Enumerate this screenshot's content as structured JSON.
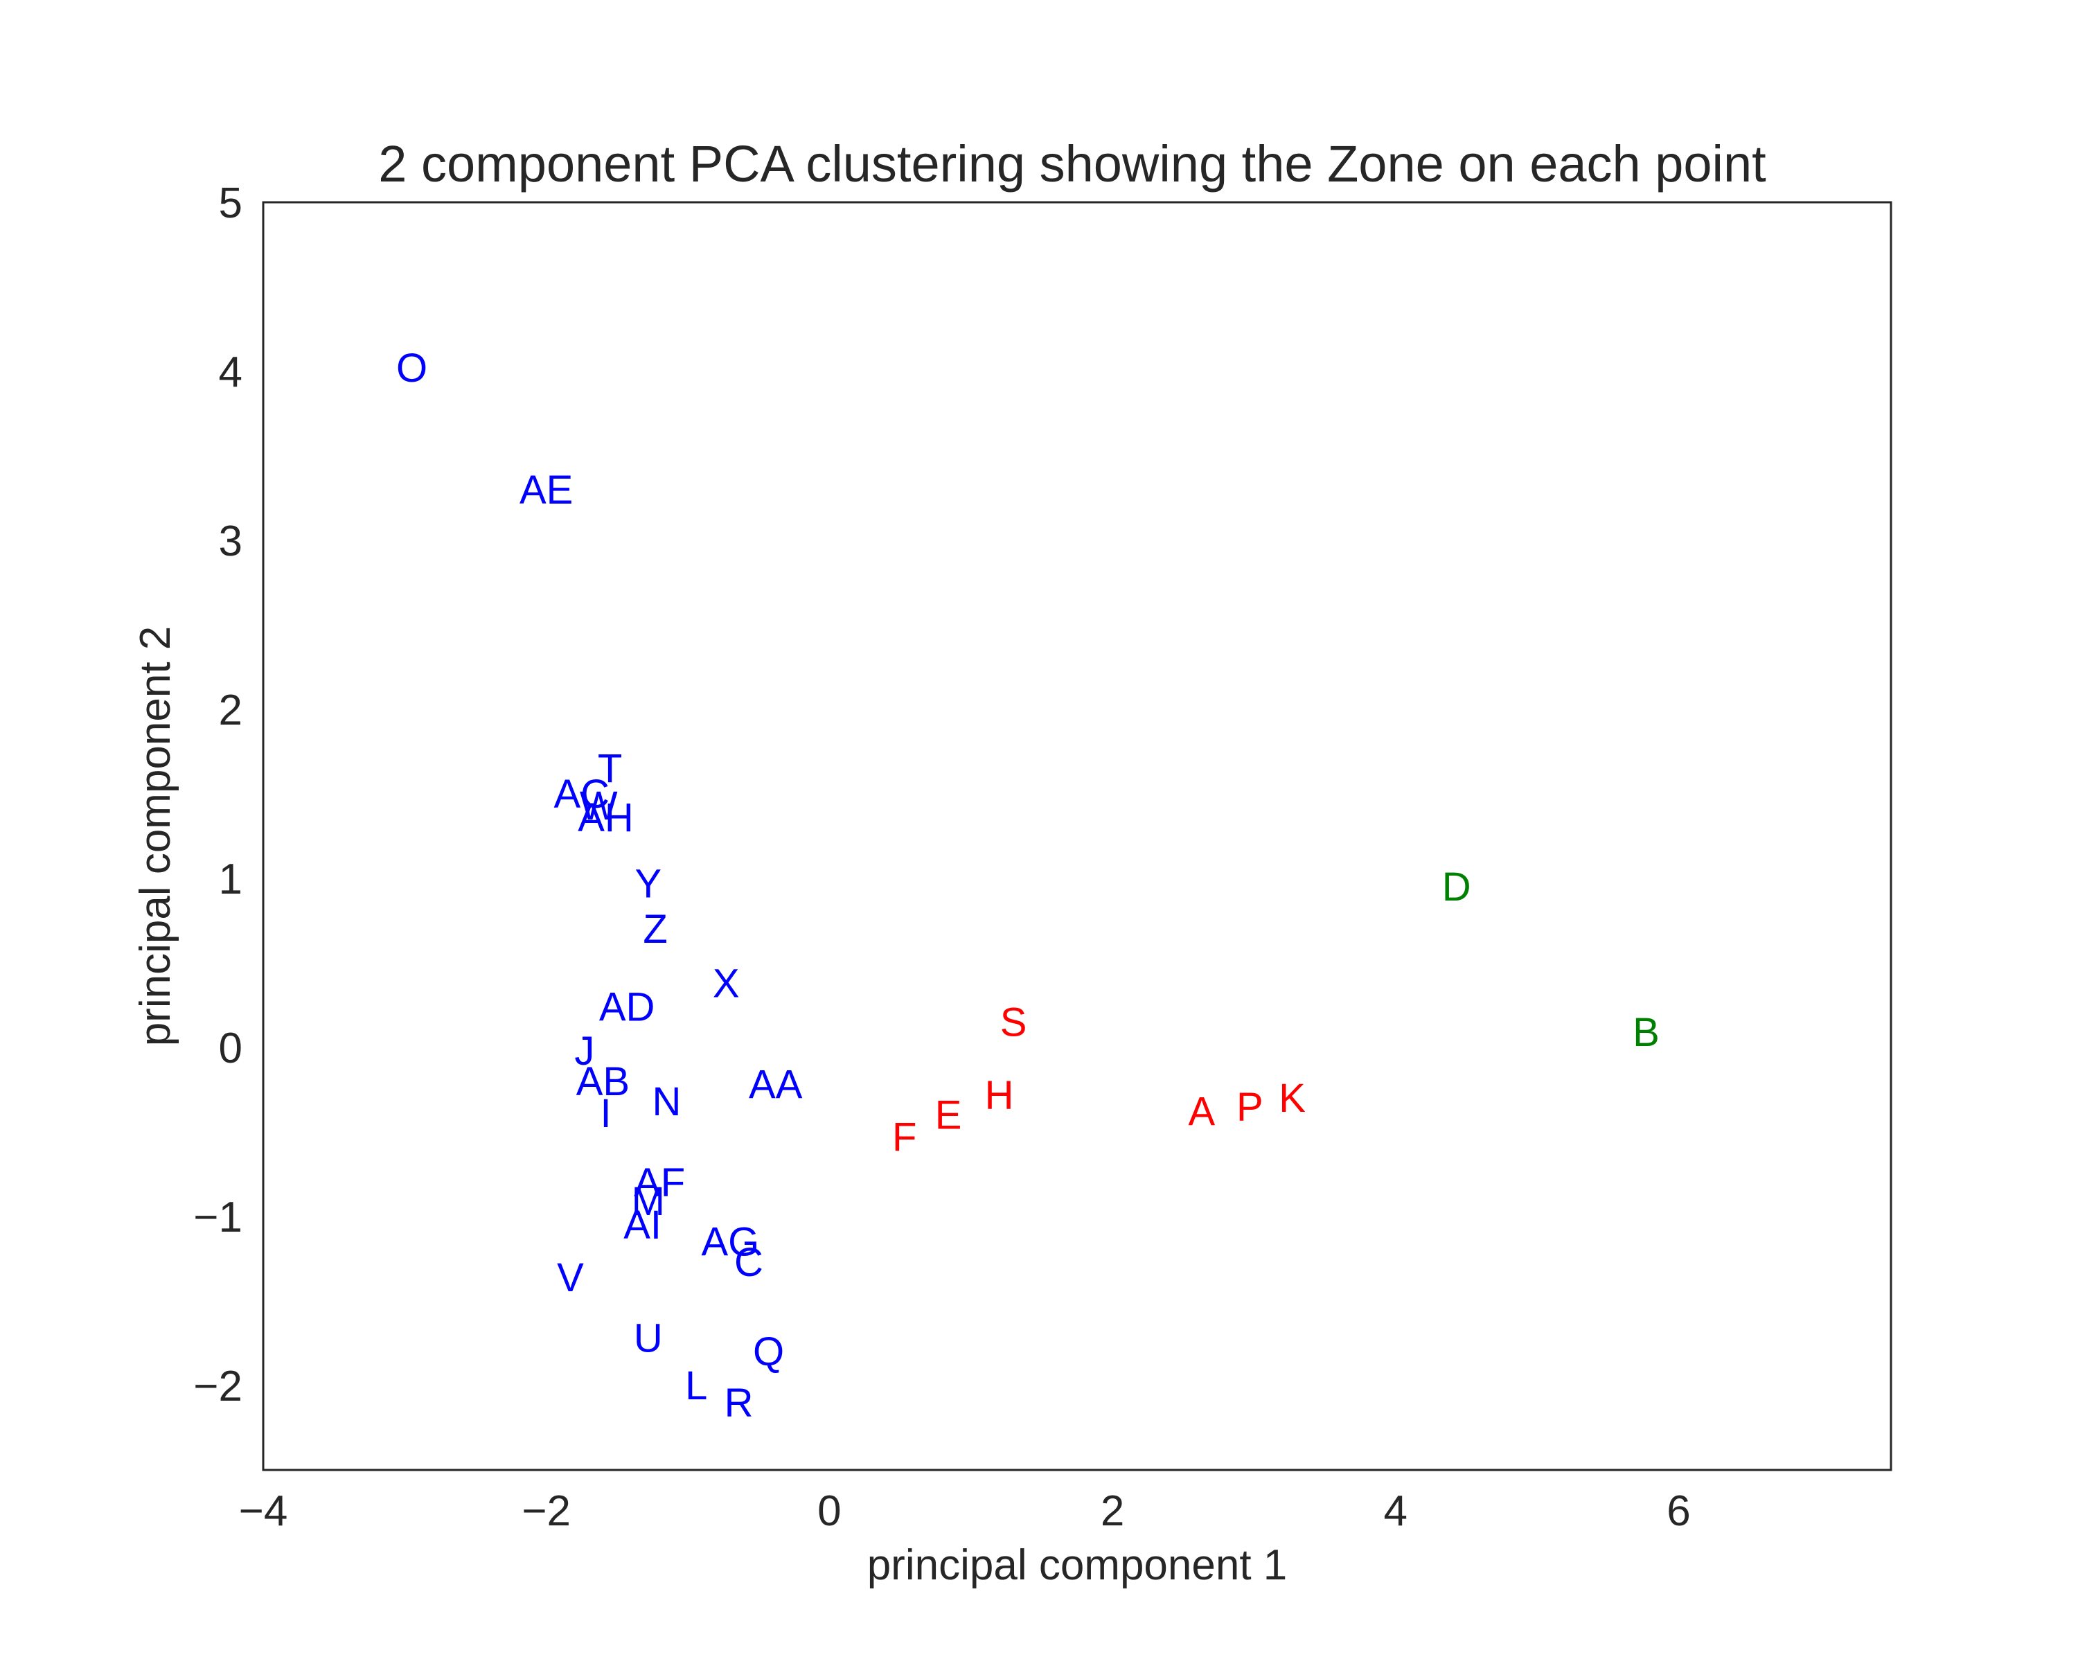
{
  "chart_data": {
    "type": "scatter",
    "title": "2 component PCA clustering showing the Zone on each point",
    "xlabel": "principal component 1",
    "ylabel": "principal component 2",
    "xlim": [
      -4,
      7.5
    ],
    "ylim": [
      -2.5,
      5
    ],
    "xticks": [
      -4,
      -2,
      0,
      2,
      4,
      6
    ],
    "yticks": [
      -2,
      -1,
      0,
      1,
      2,
      3,
      4,
      5
    ],
    "grid": false,
    "points": [
      {
        "label": "O",
        "x": -2.95,
        "y": 4.02,
        "color": "#0000ff"
      },
      {
        "label": "AE",
        "x": -2.0,
        "y": 3.3,
        "color": "#0000ff"
      },
      {
        "label": "T",
        "x": -1.55,
        "y": 1.65,
        "color": "#0000ff"
      },
      {
        "label": "AC",
        "x": -1.75,
        "y": 1.5,
        "color": "#0000ff"
      },
      {
        "label": "W",
        "x": -1.63,
        "y": 1.43,
        "color": "#0000ff"
      },
      {
        "label": "AH",
        "x": -1.58,
        "y": 1.36,
        "color": "#0000ff"
      },
      {
        "label": "Y",
        "x": -1.28,
        "y": 0.97,
        "color": "#0000ff"
      },
      {
        "label": "Z",
        "x": -1.23,
        "y": 0.7,
        "color": "#0000ff"
      },
      {
        "label": "X",
        "x": -0.73,
        "y": 0.38,
        "color": "#0000ff"
      },
      {
        "label": "AD",
        "x": -1.43,
        "y": 0.24,
        "color": "#0000ff"
      },
      {
        "label": "J",
        "x": -1.73,
        "y": -0.02,
        "color": "#0000ff"
      },
      {
        "label": "AB",
        "x": -1.6,
        "y": -0.2,
        "color": "#0000ff"
      },
      {
        "label": "AA",
        "x": -0.38,
        "y": -0.22,
        "color": "#0000ff"
      },
      {
        "label": "N",
        "x": -1.15,
        "y": -0.32,
        "color": "#0000ff"
      },
      {
        "label": "I",
        "x": -1.58,
        "y": -0.39,
        "color": "#0000ff"
      },
      {
        "label": "AF",
        "x": -1.2,
        "y": -0.8,
        "color": "#0000ff"
      },
      {
        "label": "M",
        "x": -1.28,
        "y": -0.91,
        "color": "#0000ff"
      },
      {
        "label": "AI",
        "x": -1.32,
        "y": -1.05,
        "color": "#0000ff"
      },
      {
        "label": "AG",
        "x": -0.7,
        "y": -1.15,
        "color": "#0000ff"
      },
      {
        "label": "C",
        "x": -0.57,
        "y": -1.27,
        "color": "#0000ff"
      },
      {
        "label": "V",
        "x": -1.83,
        "y": -1.36,
        "color": "#0000ff"
      },
      {
        "label": "U",
        "x": -1.28,
        "y": -1.72,
        "color": "#0000ff"
      },
      {
        "label": "Q",
        "x": -0.43,
        "y": -1.8,
        "color": "#0000ff"
      },
      {
        "label": "L",
        "x": -0.94,
        "y": -2.0,
        "color": "#0000ff"
      },
      {
        "label": "R",
        "x": -0.64,
        "y": -2.1,
        "color": "#0000ff"
      },
      {
        "label": "S",
        "x": 1.3,
        "y": 0.15,
        "color": "#ff0000"
      },
      {
        "label": "H",
        "x": 1.2,
        "y": -0.28,
        "color": "#ff0000"
      },
      {
        "label": "E",
        "x": 0.84,
        "y": -0.4,
        "color": "#ff0000"
      },
      {
        "label": "F",
        "x": 0.53,
        "y": -0.53,
        "color": "#ff0000"
      },
      {
        "label": "A",
        "x": 2.63,
        "y": -0.38,
        "color": "#ff0000"
      },
      {
        "label": "P",
        "x": 2.97,
        "y": -0.35,
        "color": "#ff0000"
      },
      {
        "label": "K",
        "x": 3.27,
        "y": -0.3,
        "color": "#ff0000"
      },
      {
        "label": "D",
        "x": 4.43,
        "y": 0.95,
        "color": "#008000"
      },
      {
        "label": "B",
        "x": 5.77,
        "y": 0.09,
        "color": "#008000"
      }
    ]
  }
}
